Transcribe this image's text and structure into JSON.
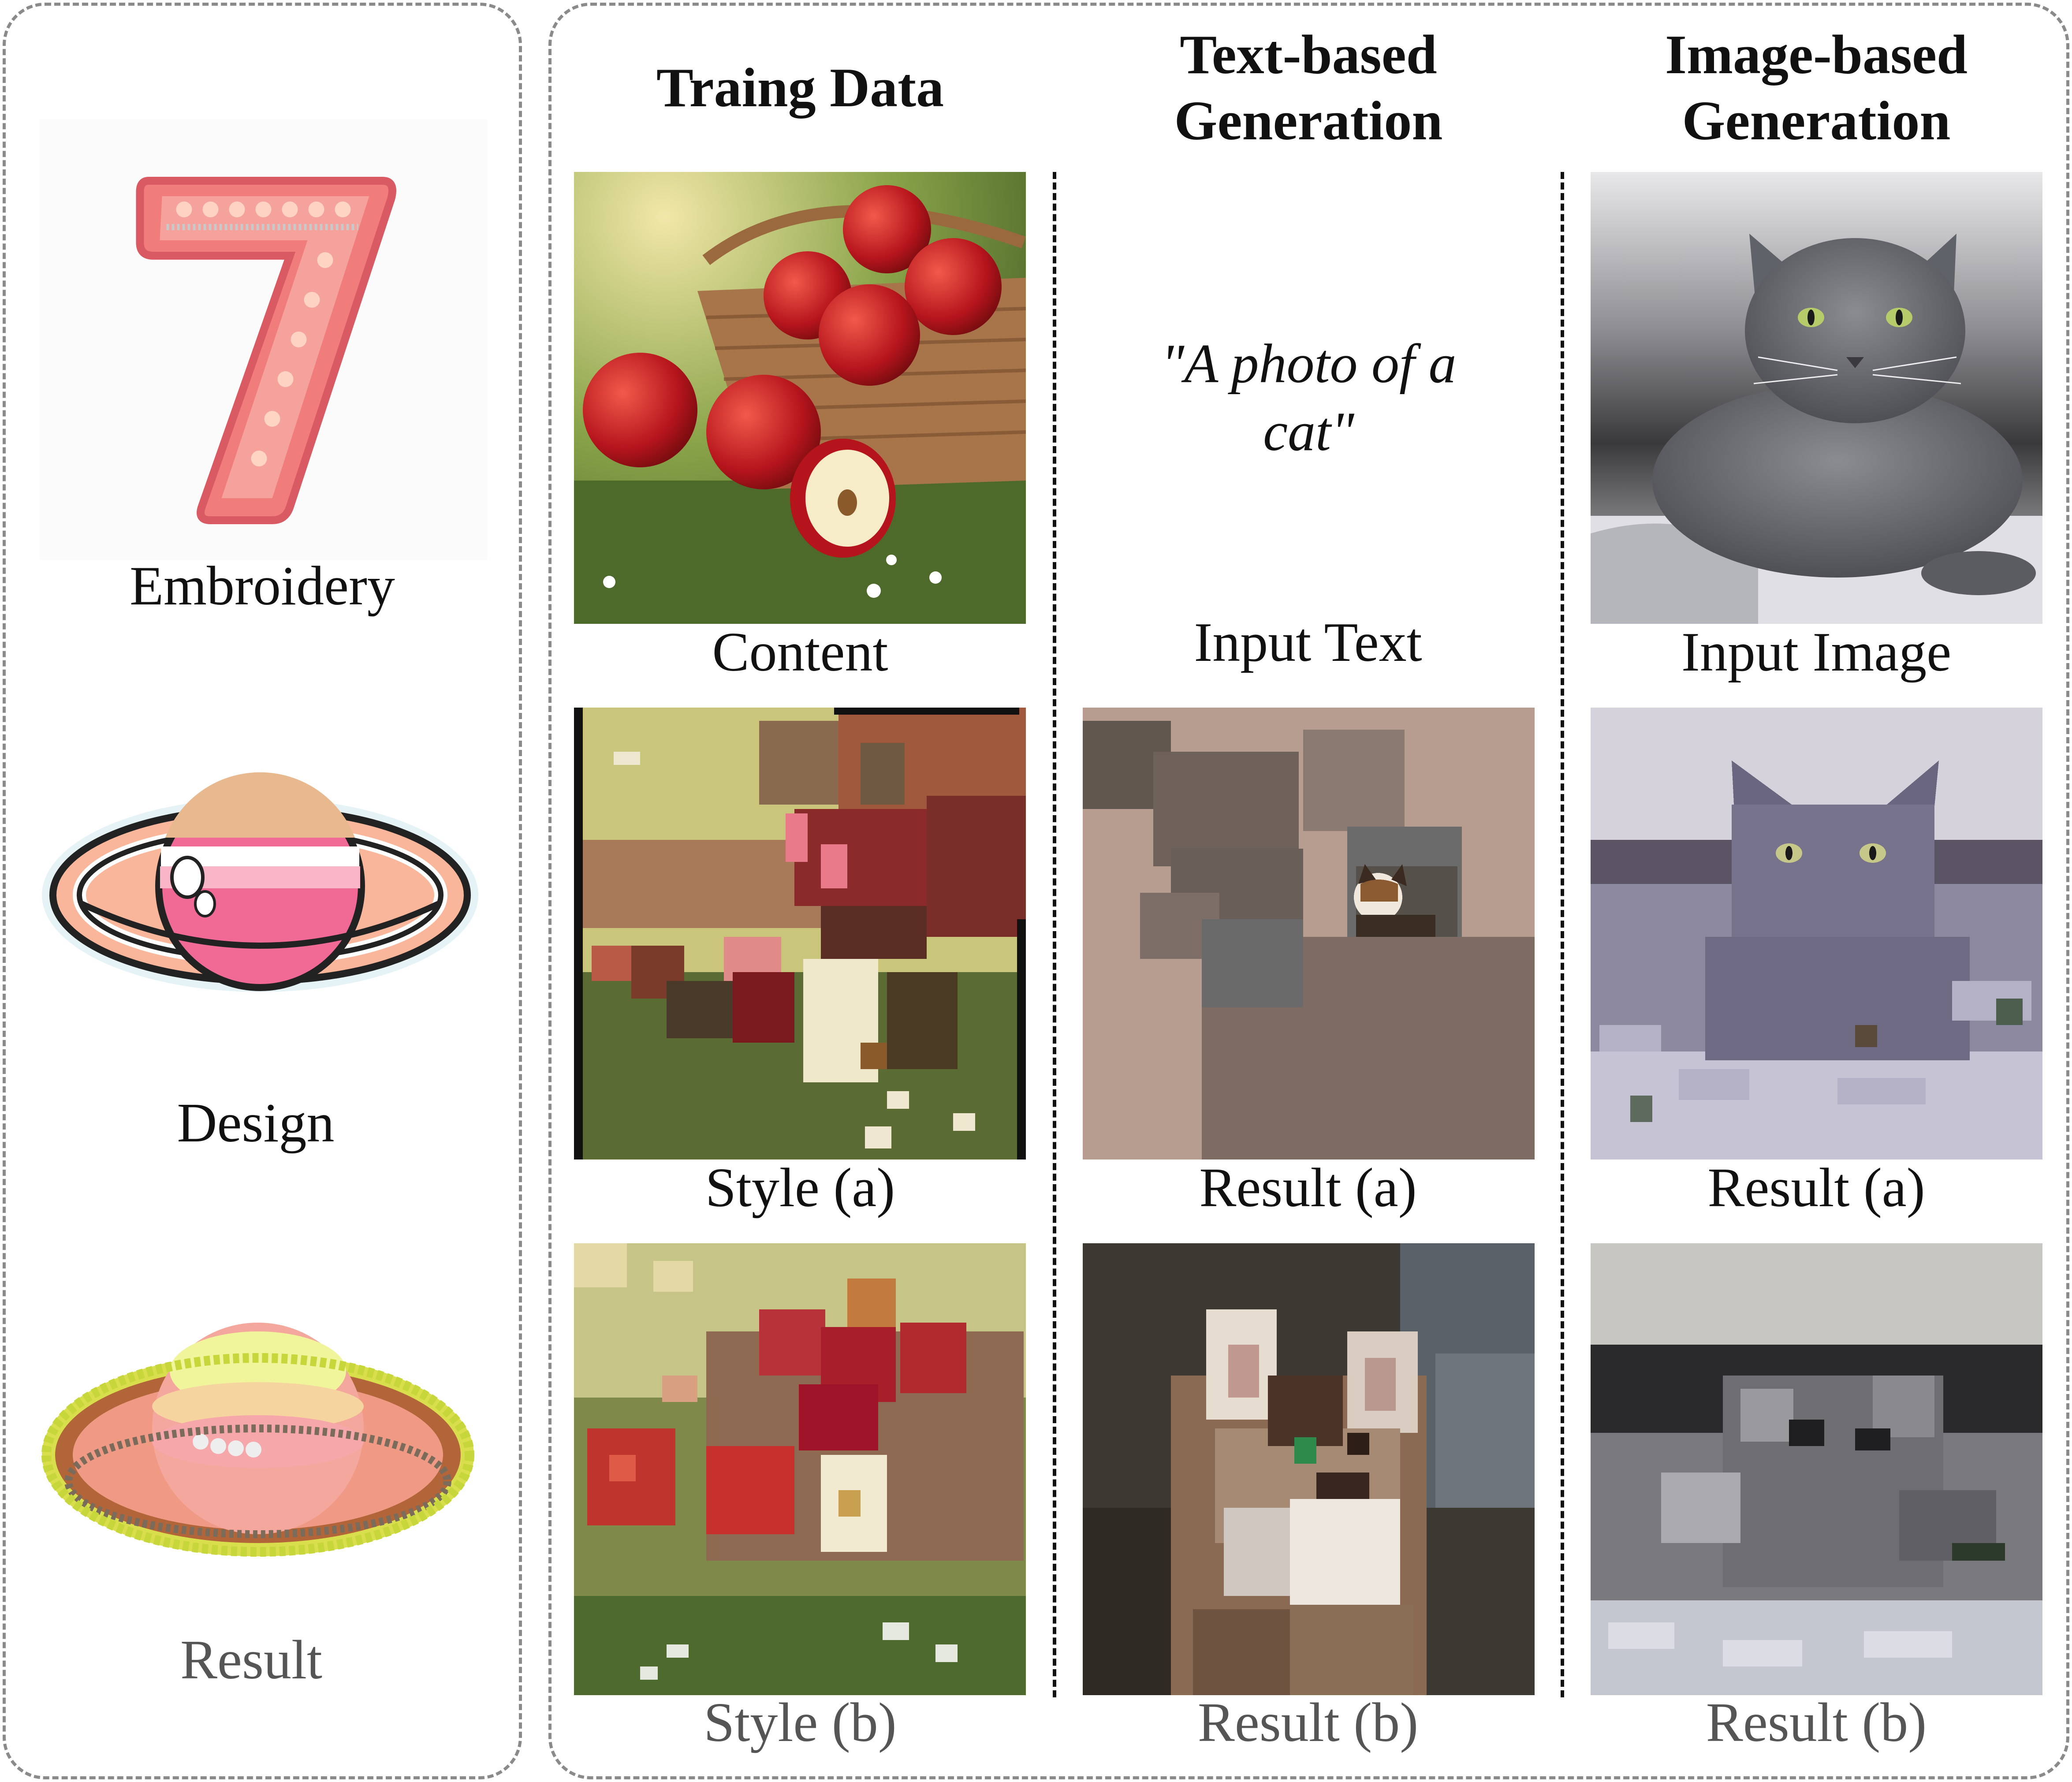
{
  "left_panel": {
    "items": [
      {
        "label": "Embroidery",
        "icon": "embroidered-seven-patch"
      },
      {
        "label": "Design",
        "icon": "saturn-sticker"
      },
      {
        "label": "Result",
        "icon": "beaded-saturn-patch"
      }
    ]
  },
  "columns": {
    "training": {
      "title": "Traing Data"
    },
    "text_gen": {
      "title_line1": "Text-based",
      "title_line2": "Generation"
    },
    "image_gen": {
      "title_line1": "Image-based",
      "title_line2": "Generation"
    }
  },
  "captions": {
    "content": "Content",
    "style_a": "Style (a)",
    "style_b": "Style (b)",
    "input_text": "Input Text",
    "text_result_a": "Result (a)",
    "text_result_b": "Result (b)",
    "input_image": "Input Image",
    "image_result_a": "Result (a)",
    "image_result_b": "Result (b)"
  },
  "prompt": {
    "text": "\"A photo of a cat\""
  },
  "colors": {
    "panel_border": "#8a8a8a",
    "column_divider": "#111111",
    "embroidery_pink": "#f07c7c",
    "saturn_pink": "#f06a95"
  }
}
